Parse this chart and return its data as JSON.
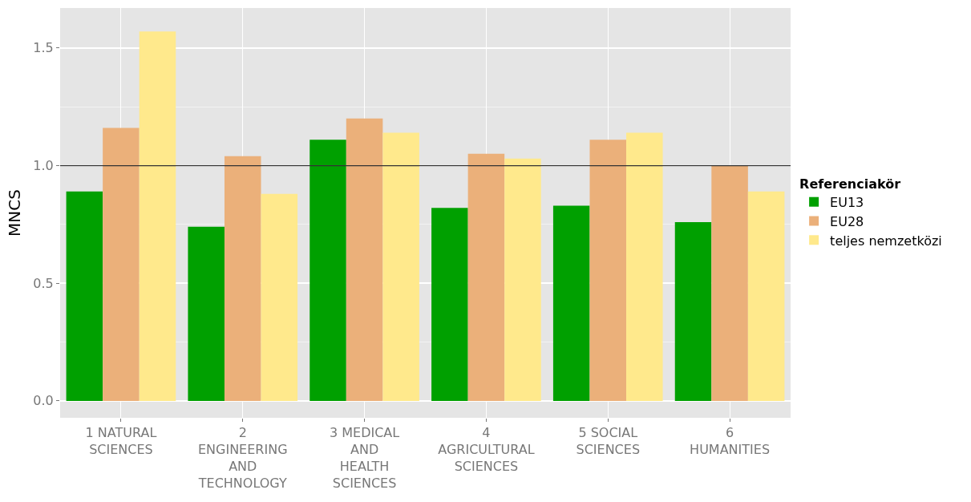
{
  "chart_data": {
    "type": "bar",
    "ylabel": "MNCS",
    "legend_title": "Referenciakör",
    "legend": "right",
    "grid": true,
    "categories": [
      "1 NATURAL\nSCIENCES",
      "2\nENGINEERING\nAND\nTECHNOLOGY",
      "3 MEDICAL\nAND\nHEALTH\nSCIENCES",
      "4\nAGRICULTURAL\nSCIENCES",
      "5 SOCIAL\nSCIENCES",
      "6\nHUMANITIES"
    ],
    "series": [
      {
        "name": "EU13",
        "color": "#00a000",
        "values": [
          0.89,
          0.74,
          1.11,
          0.82,
          0.83,
          0.76
        ]
      },
      {
        "name": "EU28",
        "color": "#ebb07a",
        "values": [
          1.16,
          1.04,
          1.2,
          1.05,
          1.11,
          1.0
        ]
      },
      {
        "name": "teljes nemzetközi",
        "color": "#ffe98c",
        "values": [
          1.57,
          0.88,
          1.14,
          1.03,
          1.14,
          0.89
        ]
      }
    ],
    "ylim": [
      -0.072,
      1.67
    ],
    "yticks": [
      {
        "value": 0,
        "label": "0.0"
      },
      {
        "value": 0.5,
        "label": "0.5"
      },
      {
        "value": 1,
        "label": "1.0"
      },
      {
        "value": 1.5,
        "label": "1.5"
      }
    ],
    "ref_lines": [
      {
        "axis": "y",
        "value": 1,
        "color": "#333333"
      }
    ]
  }
}
